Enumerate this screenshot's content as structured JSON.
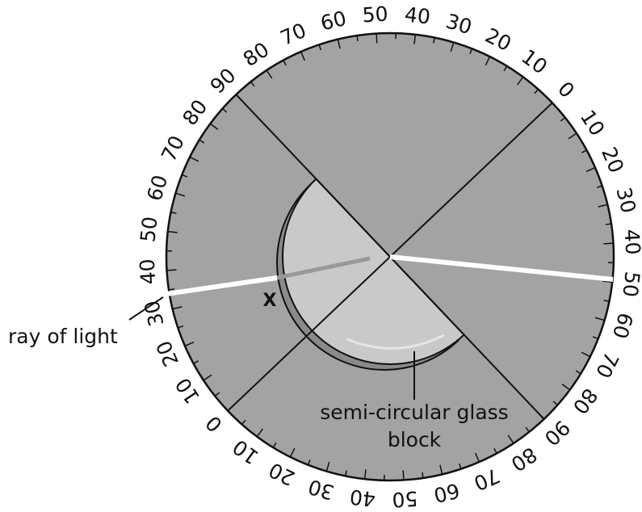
{
  "scale_labels": [
    0,
    10,
    20,
    30,
    40,
    50,
    60,
    70,
    80,
    90,
    80,
    70,
    60,
    50,
    40,
    30,
    20,
    10,
    0,
    10,
    20,
    30,
    40,
    50,
    60,
    70,
    80,
    90,
    80,
    70,
    60,
    50,
    40,
    30,
    20,
    10
  ],
  "point_label": "X",
  "ray_label": "ray of light",
  "block_label": [
    "semi-circular glass",
    "block"
  ]
}
